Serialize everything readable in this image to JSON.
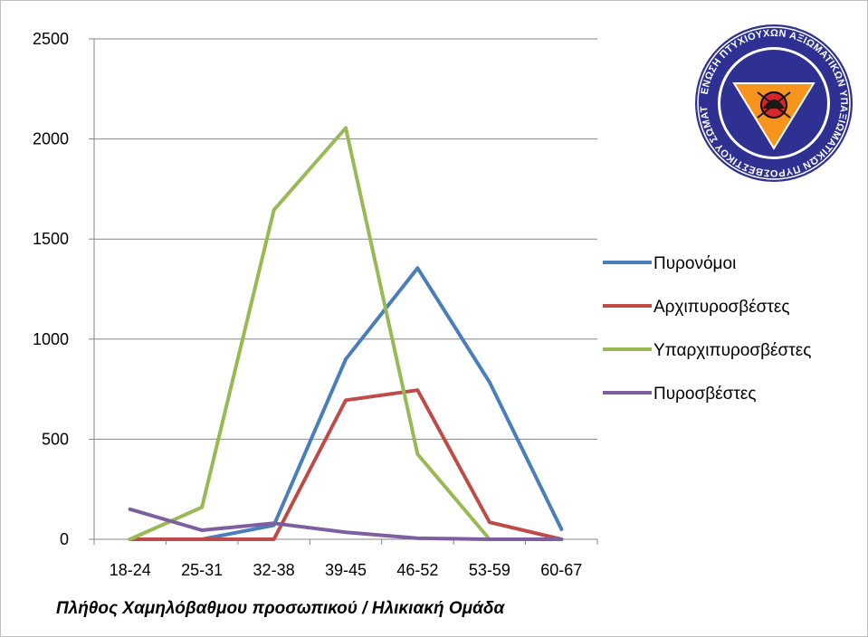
{
  "caption": "Πλήθος Χαμηλόβαθμου προσωπικού / Ηλικιακή Ομάδα",
  "logo": {
    "ring_text": "ΕΝΩΣΗ ΠΤΥΧΙΟΥΧΩΝ ΑΞΙΩΜΑΤΙΚΩΝ ΥΠΑΞΙΩΜΑΤΙΚΩΝ ΠΥΡΟΣΒΕΣΤΙΚΟΥ ΣΩΜΑΤΟΣ",
    "ring_color": "#2e3192",
    "triangle_color": "#f7941d"
  },
  "chart_data": {
    "type": "line",
    "categories": [
      "18-24",
      "25-31",
      "32-38",
      "39-45",
      "46-52",
      "53-59",
      "60-67"
    ],
    "ylim": [
      0,
      2500
    ],
    "yticks": [
      0,
      500,
      1000,
      1500,
      2000,
      2500
    ],
    "grid": true,
    "legend_position": "right",
    "series": [
      {
        "name": "Πυρονόμοι",
        "color": "#4a7ebb",
        "values": [
          0,
          0,
          70,
          900,
          1355,
          785,
          50
        ]
      },
      {
        "name": "Αρχιπυροσβέστες",
        "color": "#be4b48",
        "values": [
          0,
          0,
          0,
          695,
          745,
          85,
          0
        ]
      },
      {
        "name": "Υπαρχιπυροσβέστες",
        "color": "#98b954",
        "values": [
          0,
          160,
          1645,
          2055,
          425,
          0,
          null
        ]
      },
      {
        "name": "Πυροσβέστες",
        "color": "#7d5fa0",
        "values": [
          150,
          45,
          80,
          35,
          5,
          0,
          0
        ]
      }
    ]
  }
}
